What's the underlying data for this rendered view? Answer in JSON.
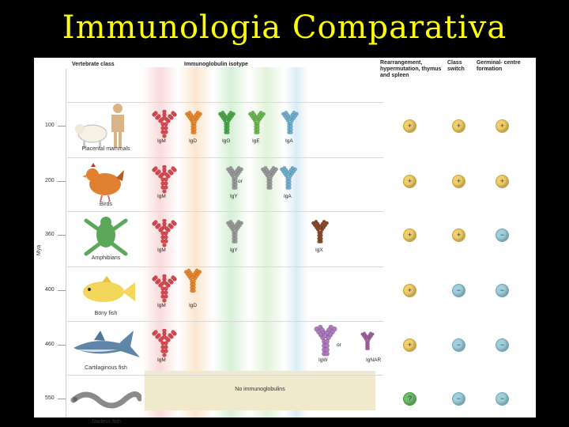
{
  "title": "Immunologia Comparativa",
  "headers": {
    "vertebrate_class": "Vertebrate class",
    "isotype": "Immunoglobulin isotype",
    "rearrangement": "Rearrangement, hypermutation, thymus and spleen",
    "class_switch": "Class switch",
    "germinal": "Germinal- centre formation"
  },
  "axis_label": "Mya",
  "no_ig": "No immunoglobulins",
  "colors": {
    "IgM": "#d9484f",
    "IgD": "#e8882e",
    "IgG": "#4aa84a",
    "IgE": "#6db84e",
    "IgA": "#6fb0cf",
    "IgX": "#8a4a2a",
    "IgW": "#b07ac0",
    "IgNAR": "#a0609e"
  },
  "rows": [
    {
      "mya": "100",
      "label": "Placental mammals",
      "animal": "human-cow",
      "isotypes": [
        {
          "label": "IgM"
        },
        {
          "label": "IgD"
        },
        {
          "label": "IgG"
        },
        {
          "label": "IgE"
        },
        {
          "label": "IgA"
        }
      ],
      "rearr": "+",
      "switch": "+",
      "germ": "+"
    },
    {
      "mya": "200",
      "label": "Birds",
      "animal": "bird",
      "isotypes": [
        {
          "label": "IgM"
        },
        {
          "label": "IgY"
        },
        {
          "label": "IgA"
        }
      ],
      "or_text": "or",
      "rearr": "+",
      "switch": "+",
      "germ": "+"
    },
    {
      "mya": "360",
      "label": "Amphibians",
      "animal": "frog",
      "isotypes": [
        {
          "label": "IgM"
        },
        {
          "label": "IgY"
        },
        {
          "label": "IgX"
        }
      ],
      "rearr": "+",
      "switch": "+",
      "germ": "−"
    },
    {
      "mya": "400",
      "label": "Bony fish",
      "animal": "fish",
      "isotypes": [
        {
          "label": "IgM"
        },
        {
          "label": "IgD"
        }
      ],
      "rearr": "+",
      "switch": "−",
      "germ": "−"
    },
    {
      "mya": "460",
      "label": "Cartilaginous fish",
      "animal": "shark",
      "isotypes": [
        {
          "label": "IgM"
        },
        {
          "label": "IgW"
        },
        {
          "label": "IgNAR"
        }
      ],
      "or_text": "or",
      "rearr": "+",
      "switch": "−",
      "germ": "−"
    },
    {
      "mya": "550",
      "label": "Jawless fish",
      "animal": "lamprey",
      "isotypes": [],
      "rearr": "?",
      "switch": "−",
      "germ": "−"
    }
  ]
}
